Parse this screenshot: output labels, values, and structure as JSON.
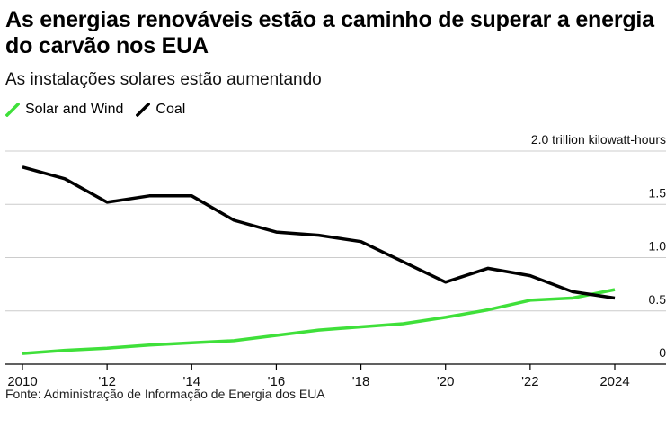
{
  "title": "As energias renováveis estão a caminho de superar a energia do carvão nos EUA",
  "subtitle": "As instalações solares estão aumentando",
  "legend": [
    {
      "label": "Solar and Wind",
      "color": "#3fe03a"
    },
    {
      "label": "Coal",
      "color": "#000000"
    }
  ],
  "source": "Fonte: Administração de Informação de Energia dos EUA",
  "chart_data": {
    "type": "line",
    "x": [
      2010,
      2011,
      2012,
      2013,
      2014,
      2015,
      2016,
      2017,
      2018,
      2019,
      2020,
      2021,
      2022,
      2023,
      2024
    ],
    "x_tick_values": [
      2010,
      2012,
      2014,
      2016,
      2018,
      2020,
      2022,
      2024
    ],
    "x_tick_labels": [
      "2010",
      "'12",
      "'14",
      "'16",
      "'18",
      "'20",
      "'22",
      "2024"
    ],
    "y_tick_values": [
      0,
      0.5,
      1.0,
      1.5,
      2.0
    ],
    "y_tick_labels": [
      "0",
      "0.5",
      "1.0",
      "1.5",
      "2.0 trillion kilowatt-hours"
    ],
    "ylim": [
      0,
      2.0
    ],
    "grid": true,
    "series": [
      {
        "name": "Solar and Wind",
        "color": "#3fe03a",
        "values": [
          0.1,
          0.13,
          0.15,
          0.18,
          0.2,
          0.22,
          0.27,
          0.32,
          0.35,
          0.38,
          0.44,
          0.51,
          0.6,
          0.62,
          0.7
        ]
      },
      {
        "name": "Coal",
        "color": "#000000",
        "values": [
          1.85,
          1.74,
          1.52,
          1.58,
          1.58,
          1.35,
          1.24,
          1.21,
          1.15,
          0.96,
          0.77,
          0.9,
          0.83,
          0.68,
          0.62
        ]
      }
    ]
  }
}
